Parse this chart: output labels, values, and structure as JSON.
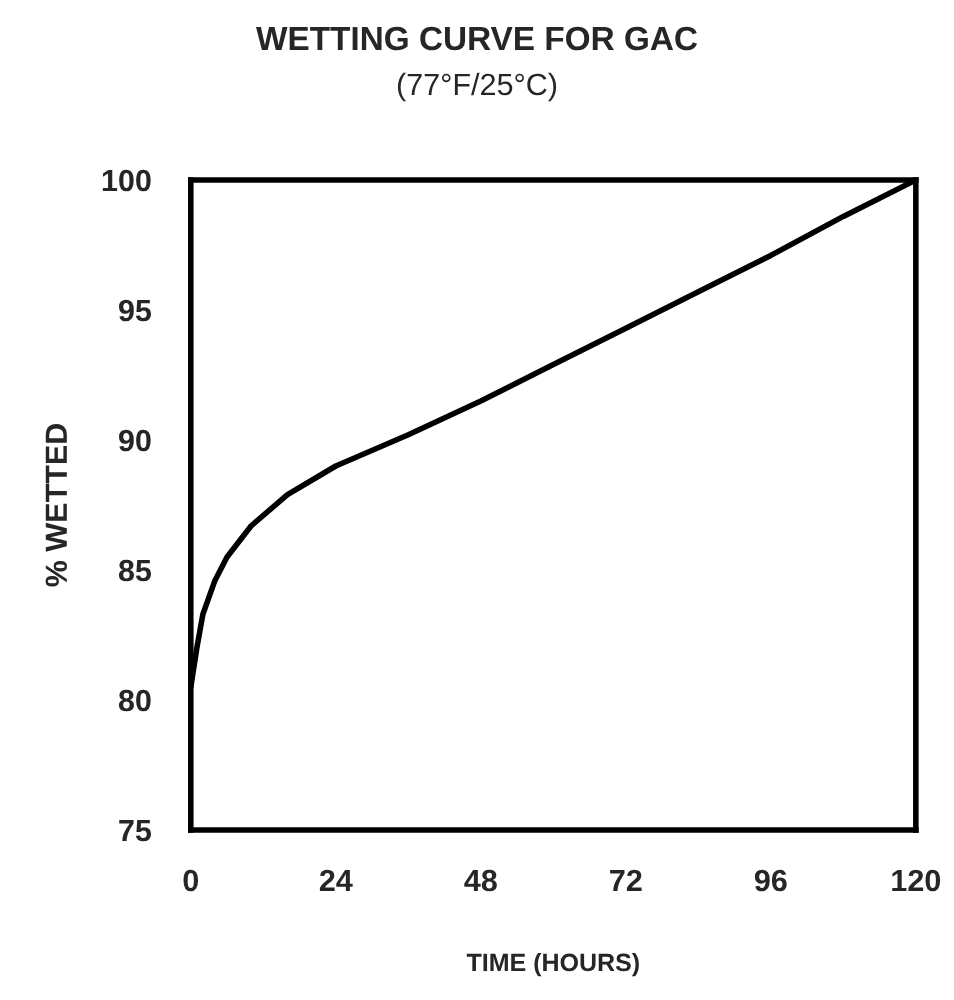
{
  "chart_data": {
    "type": "line",
    "title": "WETTING CURVE FOR GAC",
    "subtitle": "(77°F/25°C)",
    "xlabel": "TIME (HOURS)",
    "ylabel": "% WETTED",
    "x": [
      0,
      1,
      2,
      4,
      6,
      10,
      16,
      24,
      36,
      48,
      60,
      72,
      84,
      96,
      108,
      120
    ],
    "series": [
      {
        "color": "#000000",
        "values": [
          80.5,
          82,
          83.3,
          84.6,
          85.5,
          86.7,
          87.9,
          89,
          90.2,
          91.5,
          92.9,
          94.3,
          95.7,
          97.1,
          98.6,
          100
        ]
      }
    ],
    "xlim": [
      0,
      120
    ],
    "xticks": [
      0,
      24,
      48,
      72,
      96,
      120
    ],
    "ylim": [
      75,
      100
    ],
    "yticks": [
      75,
      80,
      85,
      90,
      95,
      100
    ],
    "grid": false,
    "legend": false
  }
}
